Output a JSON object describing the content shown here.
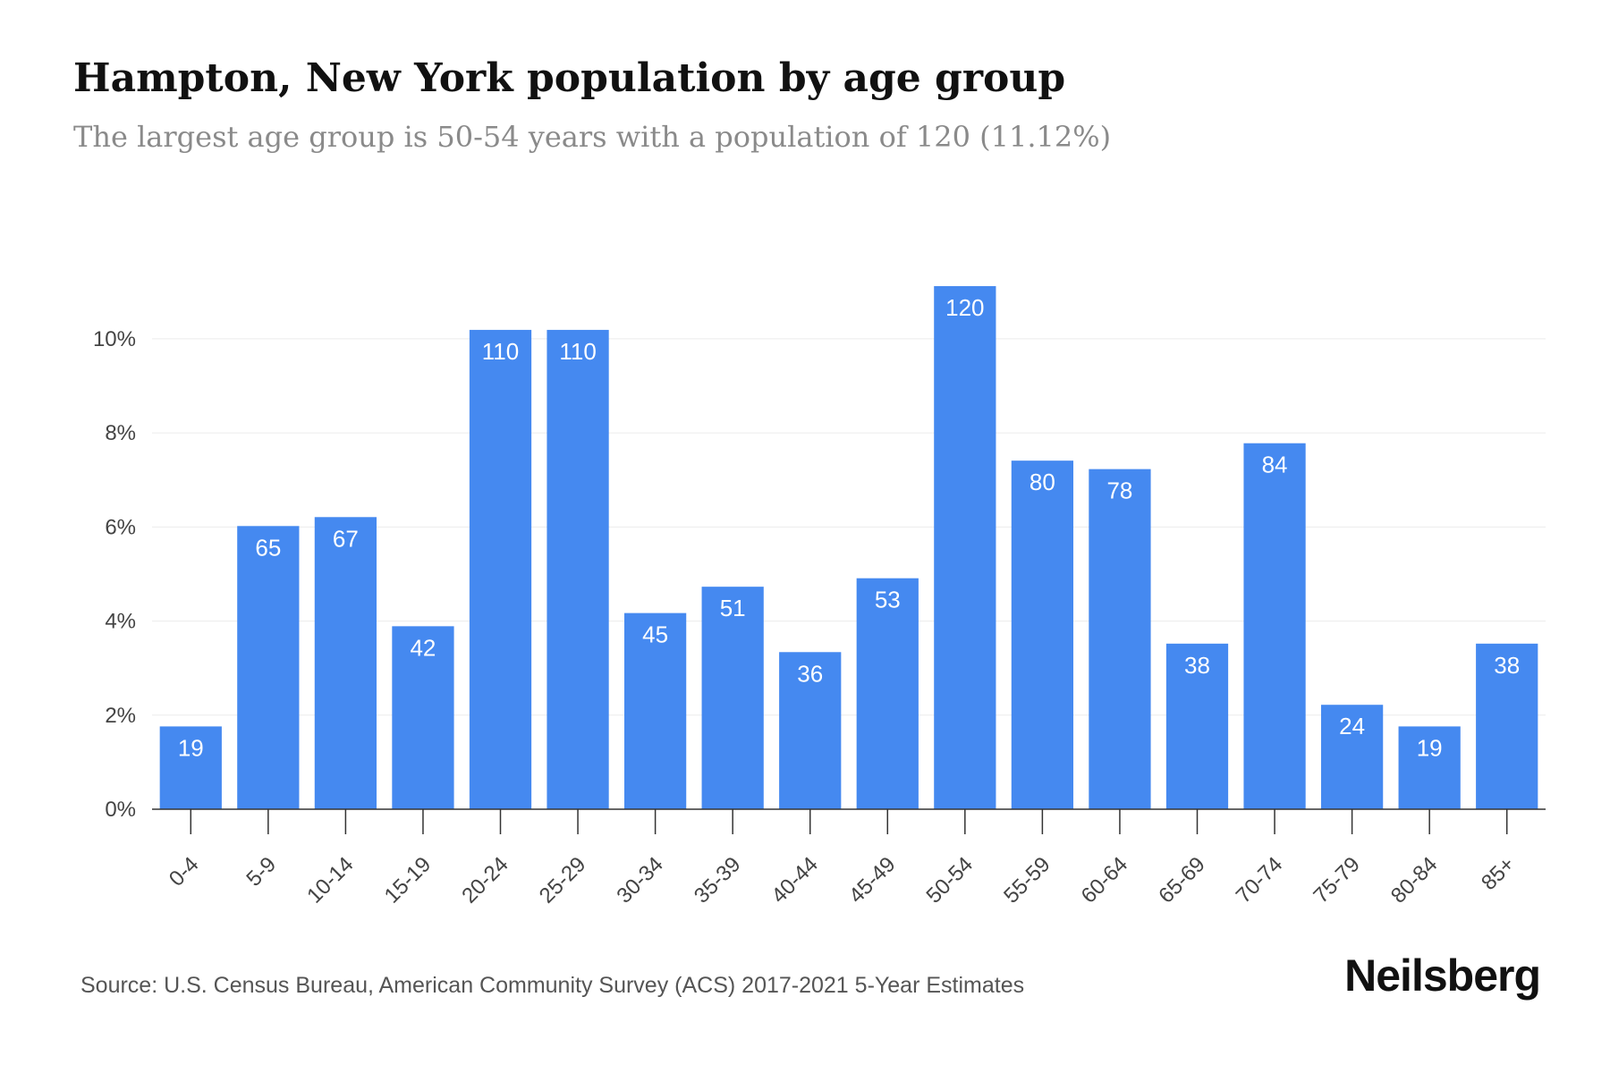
{
  "chart_data": {
    "type": "bar",
    "title": "Hampton, New York population by age group",
    "subtitle": "The largest age group is 50-54 years with a population of 120 (11.12%)",
    "categories": [
      "0-4",
      "5-9",
      "10-14",
      "15-19",
      "20-24",
      "25-29",
      "30-34",
      "35-39",
      "40-44",
      "45-49",
      "50-54",
      "55-59",
      "60-64",
      "65-69",
      "70-74",
      "75-79",
      "80-84",
      "85+"
    ],
    "values": [
      19,
      65,
      67,
      42,
      110,
      110,
      45,
      51,
      36,
      53,
      120,
      80,
      78,
      38,
      84,
      24,
      19,
      38
    ],
    "percent_values": [
      1.76,
      6.02,
      6.21,
      3.89,
      10.19,
      10.19,
      4.17,
      4.73,
      3.34,
      4.91,
      11.12,
      7.41,
      7.23,
      3.52,
      7.78,
      2.22,
      1.76,
      3.52
    ],
    "y_ticks": [
      "0%",
      "2%",
      "4%",
      "6%",
      "8%",
      "10%"
    ],
    "y_tick_values": [
      0,
      2,
      4,
      6,
      8,
      10
    ],
    "ylim": [
      0,
      11.5
    ],
    "xlabel": "",
    "ylabel": "",
    "grid": true,
    "legend": "none",
    "bar_color": "#4589f0",
    "label_color": "#ffffff"
  },
  "footer": {
    "source": "Source: U.S. Census Bureau, American Community Survey (ACS) 2017-2021 5-Year Estimates",
    "brand": "Neilsberg"
  }
}
